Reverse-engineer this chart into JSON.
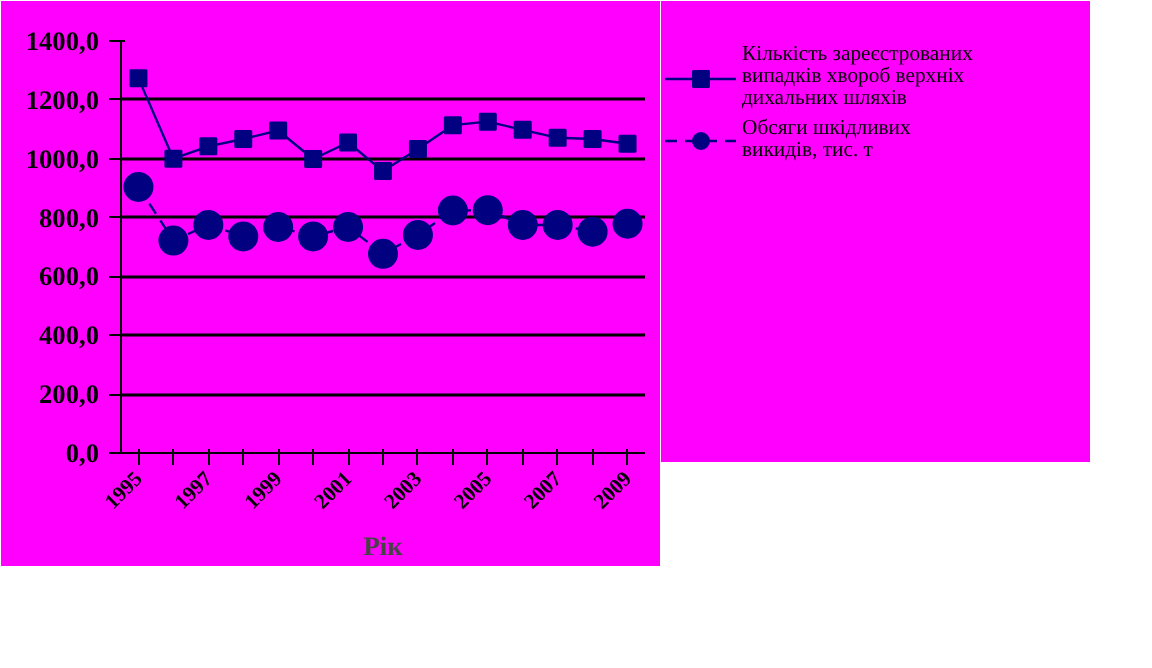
{
  "chart_data": {
    "type": "line",
    "xlabel": "Рік",
    "categories": [
      "1995",
      null,
      "1997",
      null,
      "1999",
      null,
      "2001",
      null,
      "2003",
      null,
      "2005",
      null,
      "2007",
      null,
      "2009"
    ],
    "series": [
      {
        "name": "Кількість зареєстрованих випадків хвороб верхніх дихальних шляхів",
        "color": "#000080",
        "marker": "square",
        "line_style": "solid",
        "values": [
          1273,
          1000,
          1042,
          1067,
          1096,
          999,
          1055,
          958,
          1033,
          1114,
          1126,
          1098,
          1071,
          1067,
          1051
        ]
      },
      {
        "name": "Обсяги шкідливих викидів, тис. т",
        "color": "#000080",
        "marker": "circle",
        "line_style": "dashed",
        "values": [
          904,
          722,
          775,
          736,
          768,
          736,
          768,
          677,
          741,
          824,
          825,
          775,
          775,
          752,
          779
        ]
      }
    ],
    "ylim": [
      0,
      1400
    ],
    "yticks": [
      {
        "value": 0,
        "label": "0,0"
      },
      {
        "value": 200,
        "label": "200,0"
      },
      {
        "value": 400,
        "label": "400,0"
      },
      {
        "value": 600,
        "label": "600,0"
      },
      {
        "value": 800,
        "label": "800,0"
      },
      {
        "value": 1000,
        "label": "1000,0"
      },
      {
        "value": 1200,
        "label": "1200,0"
      },
      {
        "value": 1400,
        "label": "1400,0"
      }
    ],
    "grid": "y",
    "legend": "right"
  }
}
